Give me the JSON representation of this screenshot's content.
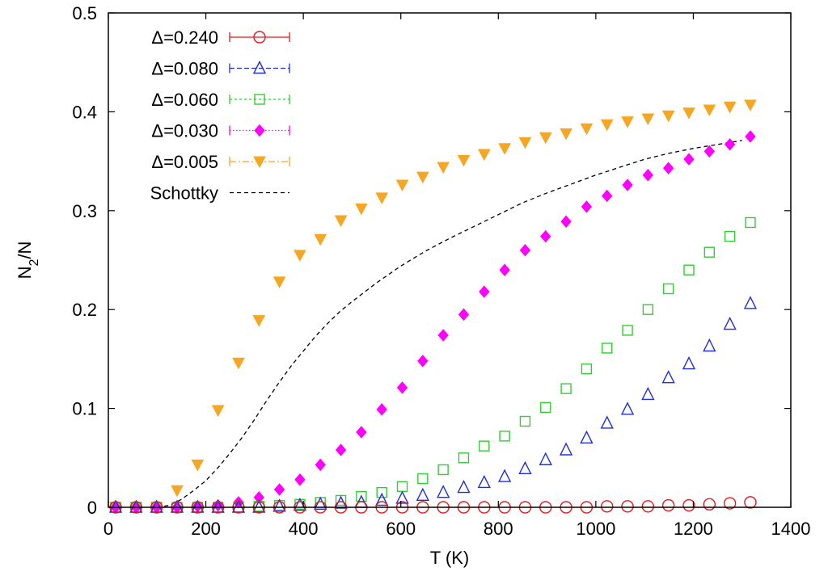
{
  "chart_data": {
    "type": "scatter",
    "title": "",
    "xlabel": "T (K)",
    "ylabel_main": "N",
    "ylabel_sub": "2",
    "ylabel_tail": "/N",
    "xlim": [
      0,
      1400
    ],
    "ylim": [
      0,
      0.5
    ],
    "xticks": [
      0,
      200,
      400,
      600,
      800,
      1000,
      1200,
      1400
    ],
    "yticks": [
      0,
      0.1,
      0.2,
      0.3,
      0.4,
      0.5
    ],
    "xtick_labels": [
      "0",
      "200",
      "400",
      "600",
      "800",
      "1000",
      "1200",
      "1400"
    ],
    "ytick_labels": [
      "0",
      "0.1",
      "0.2",
      "0.3",
      "0.4",
      "0.5"
    ],
    "grid": false,
    "legend_position": "top-left",
    "x": [
      15,
      57,
      99,
      141,
      183,
      225,
      267,
      309,
      351,
      393,
      435,
      477,
      519,
      561,
      603,
      645,
      687,
      729,
      771,
      813,
      855,
      897,
      939,
      981,
      1023,
      1065,
      1107,
      1149,
      1191,
      1233,
      1275,
      1317
    ],
    "series": [
      {
        "name": "Δ=0.240",
        "color": "#e41a1c",
        "marker": "circle-open",
        "values": [
          0,
          0,
          0,
          0,
          0,
          0,
          0,
          0,
          0,
          0,
          0,
          0,
          0,
          0,
          0,
          0,
          0,
          0,
          0,
          0,
          0,
          0,
          0,
          0,
          0.001,
          0.001,
          0.001,
          0.002,
          0.002,
          0.003,
          0.004,
          0.005
        ]
      },
      {
        "name": "Δ=0.080",
        "color": "#1f2fd6",
        "marker": "triangle-open",
        "values": [
          0,
          0,
          0,
          0,
          0,
          0,
          0,
          0,
          0.001,
          0.002,
          0.003,
          0.004,
          0.005,
          0.007,
          0.009,
          0.012,
          0.015,
          0.02,
          0.025,
          0.031,
          0.039,
          0.048,
          0.058,
          0.07,
          0.085,
          0.099,
          0.114,
          0.131,
          0.145,
          0.163,
          0.185,
          0.206
        ]
      },
      {
        "name": "Δ=0.060",
        "color": "#33cc33",
        "marker": "square-open",
        "values": [
          0,
          0,
          0,
          0,
          0,
          0,
          0,
          0.001,
          0.002,
          0.003,
          0.005,
          0.007,
          0.011,
          0.015,
          0.021,
          0.029,
          0.038,
          0.05,
          0.062,
          0.072,
          0.087,
          0.101,
          0.12,
          0.14,
          0.161,
          0.179,
          0.2,
          0.221,
          0.24,
          0.258,
          0.274,
          0.288
        ]
      },
      {
        "name": "Δ=0.030",
        "color": "#ff00ff",
        "marker": "diamond-filled",
        "values": [
          0,
          0,
          0,
          0,
          0.001,
          0.002,
          0.005,
          0.01,
          0.018,
          0.028,
          0.043,
          0.058,
          0.076,
          0.099,
          0.121,
          0.148,
          0.174,
          0.195,
          0.218,
          0.24,
          0.26,
          0.274,
          0.289,
          0.304,
          0.315,
          0.326,
          0.336,
          0.343,
          0.352,
          0.36,
          0.367,
          0.375
        ]
      },
      {
        "name": "Δ=0.005",
        "color": "#f5a623",
        "marker": "triangle-down-filled",
        "values": [
          0,
          0,
          0,
          0.017,
          0.043,
          0.098,
          0.146,
          0.189,
          0.228,
          0.255,
          0.271,
          0.29,
          0.302,
          0.313,
          0.326,
          0.334,
          0.344,
          0.351,
          0.357,
          0.363,
          0.369,
          0.374,
          0.378,
          0.383,
          0.387,
          0.39,
          0.393,
          0.396,
          0.399,
          0.402,
          0.405,
          0.407
        ]
      }
    ],
    "schottky": {
      "name": "Schottky",
      "color": "#000000",
      "style": "dashed",
      "x": [
        100,
        125,
        150,
        175,
        200,
        225,
        250,
        275,
        300,
        325,
        350,
        375,
        400,
        425,
        450,
        475,
        500,
        550,
        600,
        650,
        700,
        750,
        800,
        850,
        900,
        950,
        1000,
        1050,
        1100,
        1150,
        1200,
        1250,
        1300
      ],
      "values": [
        0.0,
        0.002,
        0.008,
        0.017,
        0.027,
        0.04,
        0.055,
        0.071,
        0.089,
        0.108,
        0.126,
        0.143,
        0.158,
        0.173,
        0.186,
        0.198,
        0.208,
        0.227,
        0.244,
        0.259,
        0.272,
        0.284,
        0.296,
        0.308,
        0.318,
        0.327,
        0.336,
        0.344,
        0.352,
        0.358,
        0.363,
        0.367,
        0.371
      ]
    }
  }
}
